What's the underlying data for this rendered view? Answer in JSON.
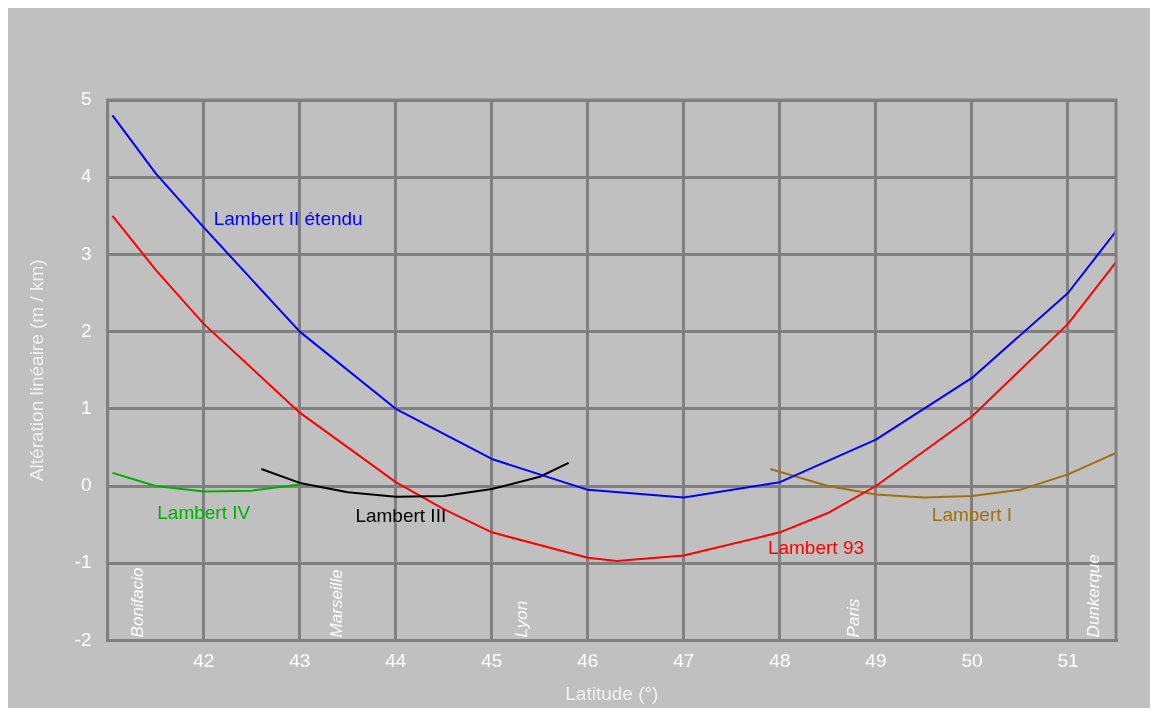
{
  "chart_data": {
    "type": "line",
    "xlabel": "Latitude (°)",
    "ylabel": "Altération linéaire (m / km)",
    "xlim": [
      41,
      51.5
    ],
    "xticks": [
      42,
      43,
      44,
      45,
      46,
      47,
      48,
      49,
      50,
      51
    ],
    "ylim": [
      -2,
      5
    ],
    "yticks": [
      -2,
      -1,
      0,
      1,
      2,
      3,
      4,
      5
    ],
    "grid": true,
    "legend": false,
    "marker": "none",
    "line_style": "solid",
    "series": [
      {
        "name": "Lambert II étendu",
        "color": "#0000ff",
        "x": [
          41.05,
          41.5,
          42,
          43,
          44,
          45,
          46,
          47,
          48,
          49,
          50,
          51,
          51.5
        ],
        "values": [
          4.8,
          4.05,
          3.35,
          2.0,
          1.0,
          0.35,
          -0.05,
          -0.15,
          0.05,
          0.6,
          1.4,
          2.5,
          3.3
        ]
      },
      {
        "name": "Lambert IV",
        "color": "#00b000",
        "x": [
          41.05,
          41.5,
          42,
          42.5,
          43
        ],
        "values": [
          0.17,
          0.0,
          -0.07,
          -0.06,
          0.02
        ]
      },
      {
        "name": "Lambert III",
        "color": "#000000",
        "x": [
          42.6,
          43,
          43.5,
          44,
          44.5,
          45,
          45.5,
          45.8
        ],
        "values": [
          0.22,
          0.04,
          -0.08,
          -0.14,
          -0.13,
          -0.04,
          0.12,
          0.3
        ]
      },
      {
        "name": "Lambert 93",
        "color": "#ff0000",
        "x": [
          41.05,
          41.5,
          42,
          43,
          44,
          44.5,
          45,
          46,
          46.3,
          47,
          48,
          48.5,
          49,
          50,
          51,
          51.5
        ],
        "values": [
          3.5,
          2.8,
          2.1,
          0.95,
          0.05,
          -0.3,
          -0.6,
          -0.93,
          -0.97,
          -0.9,
          -0.6,
          -0.35,
          0.0,
          0.9,
          2.1,
          2.9
        ]
      },
      {
        "name": "Lambert I",
        "color": "#a07010",
        "x": [
          47.9,
          48.5,
          49,
          49.5,
          50,
          50.5,
          51,
          51.5
        ],
        "values": [
          0.22,
          0.0,
          -0.11,
          -0.15,
          -0.13,
          -0.05,
          0.15,
          0.43
        ]
      }
    ],
    "annotations": [
      "Bonifacio",
      "Marseille",
      "Lyon",
      "Paris",
      "Dunkerque"
    ]
  }
}
